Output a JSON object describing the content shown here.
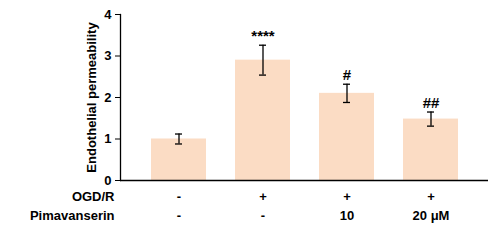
{
  "chart_data": {
    "type": "bar",
    "categories": [
      null,
      null,
      null,
      null
    ],
    "values": [
      1.0,
      2.9,
      2.1,
      1.48
    ],
    "errors": [
      0.12,
      0.36,
      0.22,
      0.17
    ],
    "annotations": [
      null,
      "****",
      "#",
      "##"
    ],
    "color": "#fbdcc4",
    "y_label": "Endothelial permeability",
    "ylim": [
      0,
      4
    ],
    "yticks": [
      0,
      1,
      2,
      3,
      4
    ],
    "tick_labels": "y",
    "conditions": [
      {
        "label": "OGD/R",
        "values": [
          "-",
          "+",
          "+",
          "+"
        ]
      },
      {
        "label": "Pimavanserin",
        "values": [
          "-",
          "-",
          "10",
          "20 μM"
        ]
      }
    ]
  }
}
